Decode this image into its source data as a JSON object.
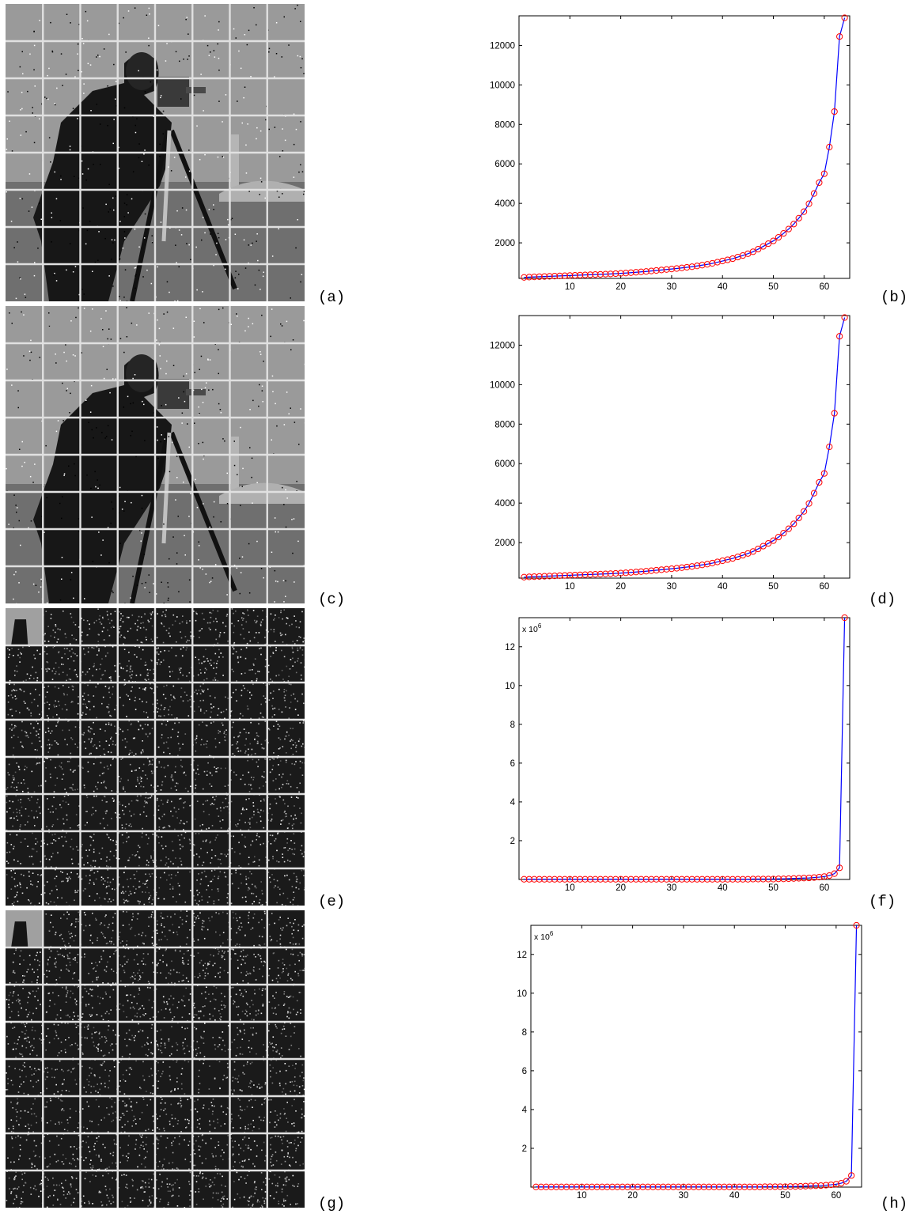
{
  "panel_labels": [
    "(a)",
    "(b)",
    "(c)",
    "(d)",
    "(e)",
    "(f)",
    "(g)",
    "(h)"
  ],
  "images": [
    {
      "label": "(a)",
      "kind": "photo-noise",
      "grid": 8
    },
    {
      "label": "(c)",
      "kind": "photo-noise",
      "grid": 8
    },
    {
      "label": "(e)",
      "kind": "coefficients",
      "grid": 8
    },
    {
      "label": "(g)",
      "kind": "coefficients",
      "grid": 8
    }
  ],
  "colors": {
    "line": "#0000ff",
    "marker": "#ff0000",
    "grid_lines": "#e0e0e0",
    "axis": "#000000"
  },
  "chart_data": [
    {
      "label": "(b)",
      "type": "line",
      "marker": "circle",
      "xlim": [
        0,
        65
      ],
      "ylim": [
        200,
        13500
      ],
      "xticks": [
        "10",
        "20",
        "30",
        "40",
        "50",
        "60"
      ],
      "yticks": [
        "2000",
        "4000",
        "6000",
        "8000",
        "10000",
        "12000"
      ],
      "multiplier": "",
      "x": [
        1,
        2,
        3,
        4,
        5,
        6,
        7,
        8,
        9,
        10,
        11,
        12,
        13,
        14,
        15,
        16,
        17,
        18,
        19,
        20,
        21,
        22,
        23,
        24,
        25,
        26,
        27,
        28,
        29,
        30,
        31,
        32,
        33,
        34,
        35,
        36,
        37,
        38,
        39,
        40,
        41,
        42,
        43,
        44,
        45,
        46,
        47,
        48,
        49,
        50,
        51,
        52,
        53,
        54,
        55,
        56,
        57,
        58,
        59,
        60,
        61,
        62,
        63,
        64
      ],
      "values": [
        250,
        265,
        275,
        285,
        295,
        305,
        315,
        325,
        335,
        345,
        355,
        365,
        375,
        385,
        395,
        405,
        415,
        425,
        440,
        455,
        470,
        490,
        510,
        530,
        550,
        575,
        600,
        625,
        650,
        675,
        700,
        730,
        760,
        790,
        830,
        870,
        910,
        960,
        1020,
        1080,
        1140,
        1200,
        1280,
        1360,
        1450,
        1550,
        1680,
        1820,
        1960,
        2100,
        2280,
        2480,
        2700,
        2950,
        3250,
        3580,
        3980,
        4500,
        5050,
        5500,
        6850,
        8650,
        12450,
        13400
      ]
    },
    {
      "label": "(d)",
      "type": "line",
      "marker": "circle",
      "xlim": [
        0,
        65
      ],
      "ylim": [
        200,
        13500
      ],
      "xticks": [
        "10",
        "20",
        "30",
        "40",
        "50",
        "60"
      ],
      "yticks": [
        "2000",
        "4000",
        "6000",
        "8000",
        "10000",
        "12000"
      ],
      "multiplier": "",
      "x": [
        1,
        2,
        3,
        4,
        5,
        6,
        7,
        8,
        9,
        10,
        11,
        12,
        13,
        14,
        15,
        16,
        17,
        18,
        19,
        20,
        21,
        22,
        23,
        24,
        25,
        26,
        27,
        28,
        29,
        30,
        31,
        32,
        33,
        34,
        35,
        36,
        37,
        38,
        39,
        40,
        41,
        42,
        43,
        44,
        45,
        46,
        47,
        48,
        49,
        50,
        51,
        52,
        53,
        54,
        55,
        56,
        57,
        58,
        59,
        60,
        61,
        62,
        63,
        64
      ],
      "values": [
        250,
        265,
        275,
        285,
        295,
        305,
        315,
        325,
        335,
        345,
        355,
        365,
        375,
        385,
        395,
        405,
        415,
        425,
        440,
        455,
        470,
        490,
        510,
        530,
        550,
        575,
        600,
        625,
        650,
        675,
        700,
        730,
        760,
        790,
        830,
        870,
        910,
        960,
        1020,
        1080,
        1140,
        1200,
        1280,
        1360,
        1450,
        1550,
        1680,
        1820,
        1960,
        2100,
        2280,
        2480,
        2700,
        2950,
        3250,
        3580,
        3980,
        4500,
        5050,
        5500,
        6850,
        8550,
        12450,
        13400
      ]
    },
    {
      "label": "(f)",
      "type": "line",
      "marker": "circle",
      "xlim": [
        0,
        65
      ],
      "ylim": [
        0,
        13.5
      ],
      "xticks": [
        "10",
        "20",
        "30",
        "40",
        "50",
        "60"
      ],
      "yticks": [
        "2",
        "4",
        "6",
        "8",
        "10",
        "12"
      ],
      "multiplier": "x 10",
      "multiplier_exp": "6",
      "x": [
        1,
        2,
        3,
        4,
        5,
        6,
        7,
        8,
        9,
        10,
        11,
        12,
        13,
        14,
        15,
        16,
        17,
        18,
        19,
        20,
        21,
        22,
        23,
        24,
        25,
        26,
        27,
        28,
        29,
        30,
        31,
        32,
        33,
        34,
        35,
        36,
        37,
        38,
        39,
        40,
        41,
        42,
        43,
        44,
        45,
        46,
        47,
        48,
        49,
        50,
        51,
        52,
        53,
        54,
        55,
        56,
        57,
        58,
        59,
        60,
        61,
        62,
        63,
        64
      ],
      "values": [
        0.01,
        0.01,
        0.01,
        0.01,
        0.01,
        0.01,
        0.01,
        0.01,
        0.01,
        0.01,
        0.01,
        0.01,
        0.01,
        0.01,
        0.01,
        0.01,
        0.01,
        0.01,
        0.01,
        0.01,
        0.01,
        0.01,
        0.01,
        0.01,
        0.01,
        0.01,
        0.01,
        0.01,
        0.01,
        0.01,
        0.01,
        0.01,
        0.01,
        0.01,
        0.01,
        0.01,
        0.01,
        0.01,
        0.01,
        0.01,
        0.01,
        0.01,
        0.01,
        0.01,
        0.01,
        0.02,
        0.02,
        0.02,
        0.02,
        0.02,
        0.03,
        0.03,
        0.04,
        0.05,
        0.06,
        0.07,
        0.08,
        0.1,
        0.12,
        0.15,
        0.2,
        0.3,
        0.6,
        13.5
      ]
    },
    {
      "label": "(h)",
      "type": "line",
      "marker": "circle",
      "xlim": [
        0,
        65
      ],
      "ylim": [
        0,
        13.5
      ],
      "xticks": [
        "10",
        "20",
        "30",
        "40",
        "50",
        "60"
      ],
      "yticks": [
        "2",
        "4",
        "6",
        "8",
        "10",
        "12"
      ],
      "multiplier": "x 10",
      "multiplier_exp": "6",
      "x": [
        1,
        2,
        3,
        4,
        5,
        6,
        7,
        8,
        9,
        10,
        11,
        12,
        13,
        14,
        15,
        16,
        17,
        18,
        19,
        20,
        21,
        22,
        23,
        24,
        25,
        26,
        27,
        28,
        29,
        30,
        31,
        32,
        33,
        34,
        35,
        36,
        37,
        38,
        39,
        40,
        41,
        42,
        43,
        44,
        45,
        46,
        47,
        48,
        49,
        50,
        51,
        52,
        53,
        54,
        55,
        56,
        57,
        58,
        59,
        60,
        61,
        62,
        63,
        64
      ],
      "values": [
        0.01,
        0.01,
        0.01,
        0.01,
        0.01,
        0.01,
        0.01,
        0.01,
        0.01,
        0.01,
        0.01,
        0.01,
        0.01,
        0.01,
        0.01,
        0.01,
        0.01,
        0.01,
        0.01,
        0.01,
        0.01,
        0.01,
        0.01,
        0.01,
        0.01,
        0.01,
        0.01,
        0.01,
        0.01,
        0.01,
        0.01,
        0.01,
        0.01,
        0.01,
        0.01,
        0.01,
        0.01,
        0.01,
        0.01,
        0.01,
        0.01,
        0.01,
        0.01,
        0.01,
        0.01,
        0.02,
        0.02,
        0.02,
        0.02,
        0.02,
        0.03,
        0.03,
        0.04,
        0.05,
        0.06,
        0.07,
        0.08,
        0.1,
        0.12,
        0.15,
        0.2,
        0.3,
        0.6,
        13.5
      ]
    }
  ]
}
